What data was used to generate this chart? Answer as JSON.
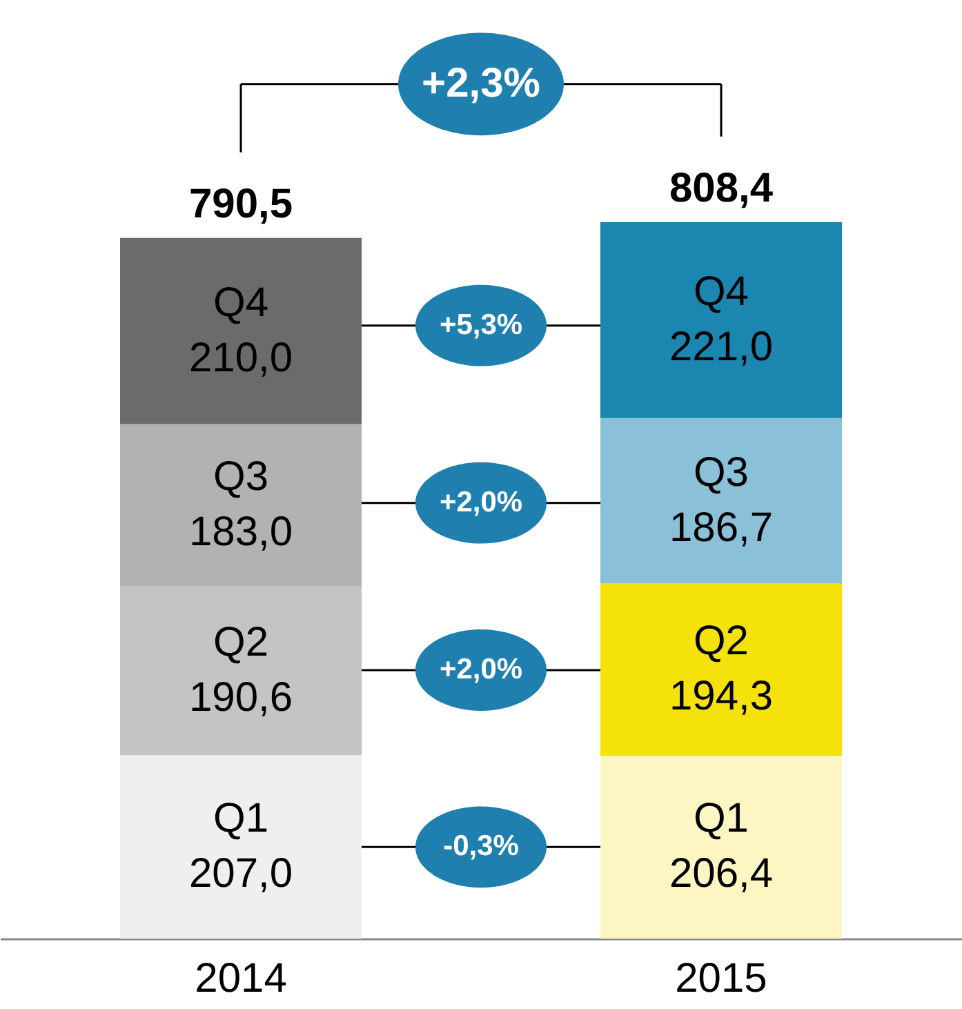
{
  "chart_data": {
    "type": "bar",
    "stacked": true,
    "categories": [
      "2014",
      "2015"
    ],
    "series": [
      {
        "name": "Q1",
        "colors": [
          "#efefef",
          "#fdf6c3"
        ],
        "values": [
          207.0,
          206.4
        ],
        "value_labels": [
          "207,0",
          "206,4"
        ]
      },
      {
        "name": "Q2",
        "colors": [
          "#c4c4c4",
          "#f5e20a"
        ],
        "values": [
          190.6,
          194.3
        ],
        "value_labels": [
          "190,6",
          "194,3"
        ]
      },
      {
        "name": "Q3",
        "colors": [
          "#b2b2b2",
          "#8bc1d8"
        ],
        "values": [
          183.0,
          186.7
        ],
        "value_labels": [
          "183,0",
          "186,7"
        ]
      },
      {
        "name": "Q4",
        "colors": [
          "#6b6b6b",
          "#1b87b0"
        ],
        "values": [
          210.0,
          221.0
        ],
        "value_labels": [
          "210,0",
          "221,0"
        ]
      }
    ],
    "totals": [
      "790,5",
      "808,4"
    ],
    "annotations": [
      "+2,3%",
      "-0,3%",
      "+2,0%",
      "+2,0%",
      "+5,3%"
    ],
    "legend": false,
    "grid": false
  }
}
